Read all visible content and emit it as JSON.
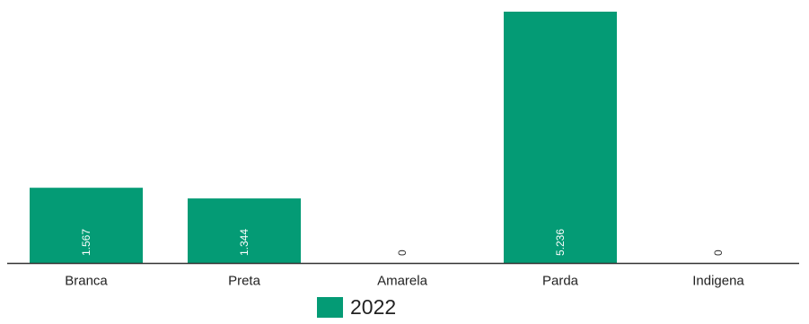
{
  "chart_data": {
    "type": "bar",
    "categories": [
      "Branca",
      "Preta",
      "Amarela",
      "Parda",
      "Indigena"
    ],
    "series": [
      {
        "name": "2022",
        "values": [
          1567,
          1344,
          0,
          5236,
          0
        ],
        "labels": [
          "1.567",
          "1.344",
          "0",
          "5.236",
          "0"
        ],
        "color": "#049b75"
      }
    ],
    "ylim": [
      0,
      5236
    ],
    "grid": false,
    "legend_position": "bottom"
  },
  "colors": {
    "bar": "#049b75",
    "bar_label": "#ffffff",
    "zero_label": "#333333",
    "axis": "#333333",
    "tick_label": "#222222"
  }
}
